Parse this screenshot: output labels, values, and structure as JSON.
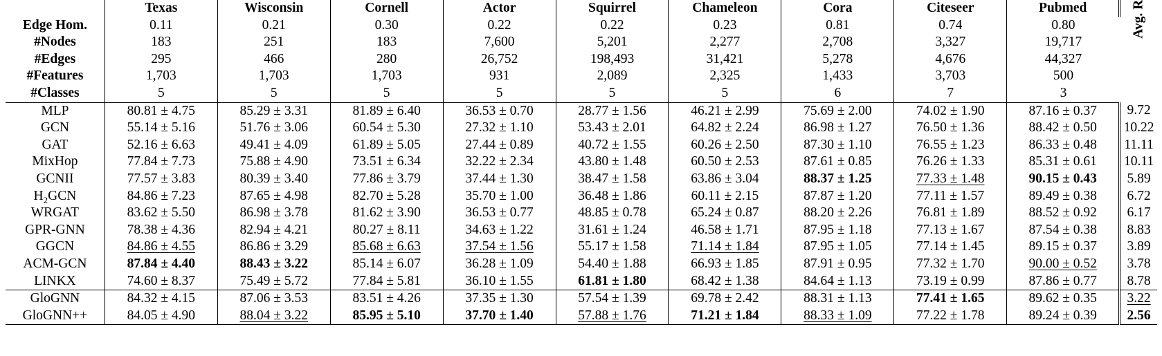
{
  "columns": [
    "Texas",
    "Wisconsin",
    "Cornell",
    "Actor",
    "Squirrel",
    "Chameleon",
    "Cora",
    "Citeseer",
    "Pubmed"
  ],
  "rank_header": "Avg. Rank",
  "stats": [
    {
      "label": "Edge Hom.",
      "values": [
        "0.11",
        "0.21",
        "0.30",
        "0.22",
        "0.22",
        "0.23",
        "0.81",
        "0.74",
        "0.80"
      ]
    },
    {
      "label": "#Nodes",
      "values": [
        "183",
        "251",
        "183",
        "7,600",
        "5,201",
        "2,277",
        "2,708",
        "3,327",
        "19,717"
      ]
    },
    {
      "label": "#Edges",
      "values": [
        "295",
        "466",
        "280",
        "26,752",
        "198,493",
        "31,421",
        "5,278",
        "4,676",
        "44,327"
      ]
    },
    {
      "label": "#Features",
      "values": [
        "1,703",
        "1,703",
        "1,703",
        "931",
        "2,089",
        "2,325",
        "1,433",
        "3,703",
        "500"
      ]
    },
    {
      "label": "#Classes",
      "values": [
        "5",
        "5",
        "5",
        "5",
        "5",
        "5",
        "6",
        "7",
        "3"
      ]
    }
  ],
  "methods": [
    {
      "name": "MLP",
      "cells": [
        "80.81 ± 4.75",
        "85.29 ± 3.31",
        "81.89 ± 6.40",
        "36.53 ± 0.70",
        "28.77 ± 1.56",
        "46.21 ± 2.99",
        "75.69 ± 2.00",
        "74.02 ± 1.90",
        "87.16 ± 0.37"
      ],
      "rank": "9.72"
    },
    {
      "name": "GCN",
      "cells": [
        "55.14 ± 5.16",
        "51.76 ± 3.06",
        "60.54 ± 5.30",
        "27.32 ± 1.10",
        "53.43 ± 2.01",
        "64.82 ± 2.24",
        "86.98 ± 1.27",
        "76.50 ± 1.36",
        "88.42 ± 0.50"
      ],
      "rank": "10.22"
    },
    {
      "name": "GAT",
      "cells": [
        "52.16 ± 6.63",
        "49.41 ± 4.09",
        "61.89 ± 5.05",
        "27.44 ± 0.89",
        "40.72 ± 1.55",
        "60.26 ± 2.50",
        "87.30 ± 1.10",
        "76.55 ± 1.23",
        "86.33 ± 0.48"
      ],
      "rank": "11.11"
    },
    {
      "name": "MixHop",
      "cells": [
        "77.84 ± 7.73",
        "75.88 ± 4.90",
        "73.51 ± 6.34",
        "32.22 ± 2.34",
        "43.80 ± 1.48",
        "60.50 ± 2.53",
        "87.61 ± 0.85",
        "76.26 ± 1.33",
        "85.31 ± 0.61"
      ],
      "rank": "10.11"
    },
    {
      "name": "GCNII",
      "cells": [
        "77.57 ± 3.83",
        "80.39 ± 3.40",
        "77.86 ± 3.79",
        "37.44 ± 1.30",
        "38.47 ± 1.58",
        "63.86 ± 3.04",
        "88.37 ± 1.25",
        "77.33 ± 1.48",
        "90.15 ± 0.43"
      ],
      "rank": "5.89",
      "bold": [
        6,
        8
      ],
      "underline": [
        7
      ]
    },
    {
      "name_pre": "H",
      "name_sub": "2",
      "name_post": "GCN",
      "cells": [
        "84.86 ± 7.23",
        "87.65 ± 4.98",
        "82.70 ± 5.28",
        "35.70 ± 1.00",
        "36.48 ± 1.86",
        "60.11 ± 2.15",
        "87.87 ± 1.20",
        "77.11 ± 1.57",
        "89.49 ± 0.38"
      ],
      "rank": "6.72"
    },
    {
      "name": "WRGAT",
      "cells": [
        "83.62 ± 5.50",
        "86.98 ± 3.78",
        "81.62 ± 3.90",
        "36.53 ± 0.77",
        "48.85 ± 0.78",
        "65.24 ± 0.87",
        "88.20 ± 2.26",
        "76.81 ± 1.89",
        "88.52 ± 0.92"
      ],
      "rank": "6.17"
    },
    {
      "name": "GPR-GNN",
      "cells": [
        "78.38 ± 4.36",
        "82.94 ± 4.21",
        "80.27 ± 8.11",
        "34.63 ± 1.22",
        "31.61 ± 1.24",
        "46.58 ± 1.71",
        "87.95 ± 1.18",
        "77.13 ± 1.67",
        "87.54 ± 0.38"
      ],
      "rank": "8.83"
    },
    {
      "name": "GGCN",
      "cells": [
        "84.86 ± 4.55",
        "86.86 ± 3.29",
        "85.68 ± 6.63",
        "37.54 ± 1.56",
        "55.17 ± 1.58",
        "71.14 ± 1.84",
        "87.95 ± 1.05",
        "77.14 ± 1.45",
        "89.15 ± 0.37"
      ],
      "rank": "3.89",
      "underline": [
        0,
        2,
        3,
        5
      ]
    },
    {
      "name": "ACM-GCN",
      "cells": [
        "87.84 ± 4.40",
        "88.43 ± 3.22",
        "85.14 ± 6.07",
        "36.28 ± 1.09",
        "54.40 ± 1.88",
        "66.93 ± 1.85",
        "87.91 ± 0.95",
        "77.32 ± 1.70",
        "90.00 ± 0.52"
      ],
      "rank": "3.78",
      "bold": [
        0,
        1
      ],
      "underline": [
        8
      ]
    },
    {
      "name": "LINKX",
      "cells": [
        "74.60 ± 8.37",
        "75.49 ± 5.72",
        "77.84 ± 5.81",
        "36.10 ± 1.55",
        "61.81 ± 1.80",
        "68.42 ± 1.38",
        "84.64 ± 1.13",
        "73.19 ± 0.99",
        "87.86 ± 0.77"
      ],
      "rank": "8.78",
      "bold": [
        4
      ]
    },
    {
      "name": "GloGNN",
      "cells": [
        "84.32 ± 4.15",
        "87.06 ± 3.53",
        "83.51 ± 4.26",
        "37.35 ± 1.30",
        "57.54 ± 1.39",
        "69.78 ± 2.42",
        "88.31 ± 1.13",
        "77.41 ± 1.65",
        "89.62 ± 0.35"
      ],
      "rank": "3.22",
      "bold": [
        7
      ],
      "rank_underline": true
    },
    {
      "name": "GloGNN++",
      "cells": [
        "84.05 ± 4.90",
        "88.04 ± 3.22",
        "85.95 ± 5.10",
        "37.70 ± 1.40",
        "57.88 ± 1.76",
        "71.21 ± 1.84",
        "88.33 ± 1.09",
        "77.22 ± 1.78",
        "89.24 ± 0.39"
      ],
      "rank": "2.56",
      "bold": [
        2,
        3,
        5
      ],
      "underline": [
        1,
        4,
        6
      ],
      "rank_bold": true
    }
  ]
}
